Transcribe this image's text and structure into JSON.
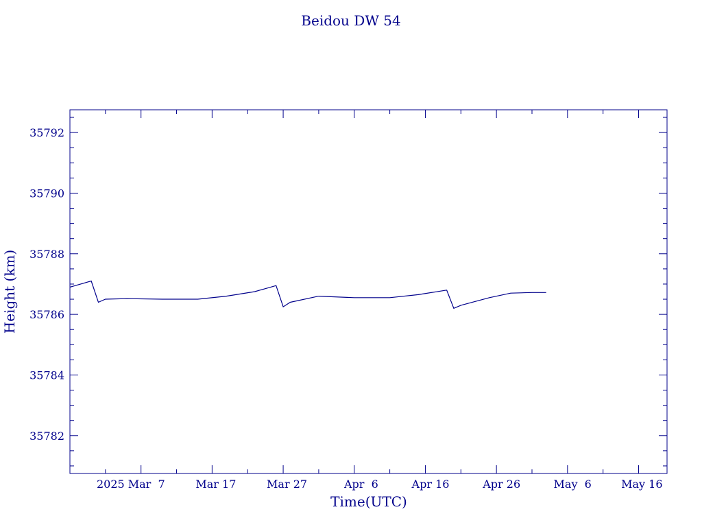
{
  "chart_data": {
    "type": "line",
    "title": "Beidou DW 54",
    "xlabel": "Time(UTC)",
    "ylabel": "Height (km)",
    "color": "#00008b",
    "x_tick_labels": [
      "2025 Mar  7",
      "Mar 17",
      "Mar 27",
      "Apr  6",
      "Apr 16",
      "Apr 26",
      "May  6",
      "May 16"
    ],
    "x_tick_dates": [
      "2025-03-07",
      "2025-03-17",
      "2025-03-27",
      "2025-04-06",
      "2025-04-16",
      "2025-04-26",
      "2025-05-06",
      "2025-05-16"
    ],
    "x_range": [
      "2025-02-25",
      "2025-05-20"
    ],
    "y_ticks": [
      35782,
      35784,
      35786,
      35788,
      35790,
      35792
    ],
    "ylim": [
      35780.75,
      35792.75
    ],
    "grid": false,
    "series": [
      {
        "x": [
          "2025-02-25",
          "2025-02-28",
          "2025-03-01",
          "2025-03-02",
          "2025-03-05",
          "2025-03-10",
          "2025-03-15",
          "2025-03-19",
          "2025-03-23",
          "2025-03-26",
          "2025-03-27",
          "2025-03-28",
          "2025-04-01",
          "2025-04-06",
          "2025-04-11",
          "2025-04-15",
          "2025-04-19",
          "2025-04-20",
          "2025-04-21",
          "2025-04-25",
          "2025-04-28",
          "2025-05-01",
          "2025-05-03"
        ],
        "y": [
          35786.9,
          35787.1,
          35786.4,
          35786.5,
          35786.52,
          35786.5,
          35786.5,
          35786.6,
          35786.75,
          35786.95,
          35786.25,
          35786.4,
          35786.6,
          35786.55,
          35786.55,
          35786.65,
          35786.8,
          35786.2,
          35786.3,
          35786.55,
          35786.7,
          35786.72,
          35786.72
        ]
      }
    ]
  }
}
